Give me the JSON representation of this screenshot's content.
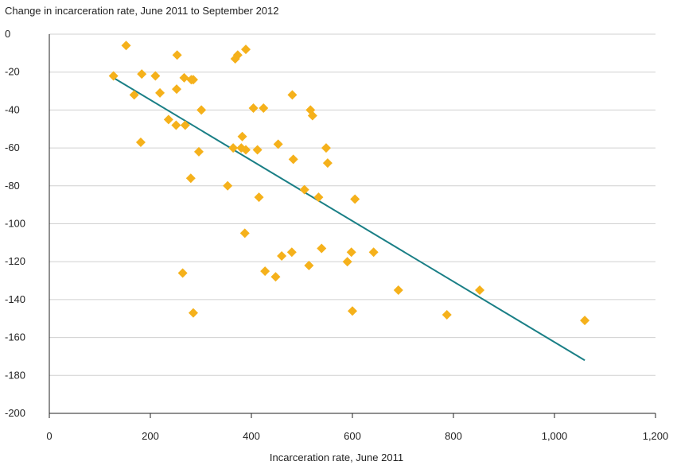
{
  "chart_data": {
    "type": "scatter",
    "title": "Change in incarceration rate, June 2011 to September 2012",
    "xlabel": "Incarceration rate, June 2011",
    "ylabel": "",
    "xlim": [
      0,
      1200
    ],
    "ylim": [
      -200,
      0
    ],
    "x_ticks": [
      0,
      200,
      400,
      600,
      800,
      1000,
      1200
    ],
    "x_tick_labels": [
      "0",
      "200",
      "400",
      "600",
      "800",
      "1,000",
      "1,200"
    ],
    "y_ticks": [
      0,
      -20,
      -40,
      -60,
      -80,
      -100,
      -120,
      -140,
      -160,
      -180,
      -200
    ],
    "y_tick_labels": [
      "0",
      "-20",
      "-40",
      "-60",
      "-80",
      "-100",
      "-120",
      "-140",
      "-160",
      "-180",
      "-200"
    ],
    "grid": "horizontal",
    "colors": {
      "points": "#F5B11B",
      "trendline": "#1A7F86",
      "grid": "#D0D0D0",
      "axis": "#222222"
    },
    "series": [
      {
        "values": [
          [
            127,
            -22
          ],
          [
            152,
            -6
          ],
          [
            168,
            -32
          ],
          [
            181,
            -57
          ],
          [
            183,
            -21
          ],
          [
            210,
            -22
          ],
          [
            219,
            -31
          ],
          [
            236,
            -45
          ],
          [
            251,
            -48
          ],
          [
            252,
            -29
          ],
          [
            253,
            -11
          ],
          [
            264,
            -126
          ],
          [
            267,
            -23
          ],
          [
            269,
            -48
          ],
          [
            280,
            -76
          ],
          [
            281,
            -24
          ],
          [
            285,
            -24
          ],
          [
            285,
            -147
          ],
          [
            296,
            -62
          ],
          [
            301,
            -40
          ],
          [
            353,
            -80
          ],
          [
            364,
            -60
          ],
          [
            368,
            -13
          ],
          [
            373,
            -11
          ],
          [
            380,
            -60
          ],
          [
            382,
            -54
          ],
          [
            387,
            -105
          ],
          [
            389,
            -61
          ],
          [
            389,
            -8
          ],
          [
            404,
            -39
          ],
          [
            412,
            -61
          ],
          [
            415,
            -86
          ],
          [
            424,
            -39
          ],
          [
            427,
            -125
          ],
          [
            448,
            -128
          ],
          [
            453,
            -58
          ],
          [
            460,
            -117
          ],
          [
            480,
            -115
          ],
          [
            481,
            -32
          ],
          [
            483,
            -66
          ],
          [
            505,
            -82
          ],
          [
            514,
            -122
          ],
          [
            517,
            -40
          ],
          [
            521,
            -43
          ],
          [
            533,
            -86
          ],
          [
            539,
            -113
          ],
          [
            548,
            -60
          ],
          [
            551,
            -68
          ],
          [
            590,
            -120
          ],
          [
            598,
            -115
          ],
          [
            600,
            -146
          ],
          [
            605,
            -87
          ],
          [
            642,
            -115
          ],
          [
            691,
            -135
          ],
          [
            787,
            -148
          ],
          [
            852,
            -135
          ],
          [
            1060,
            -151
          ]
        ]
      }
    ],
    "trendline": {
      "x": [
        127,
        1060
      ],
      "y": [
        -23,
        -172
      ]
    }
  }
}
